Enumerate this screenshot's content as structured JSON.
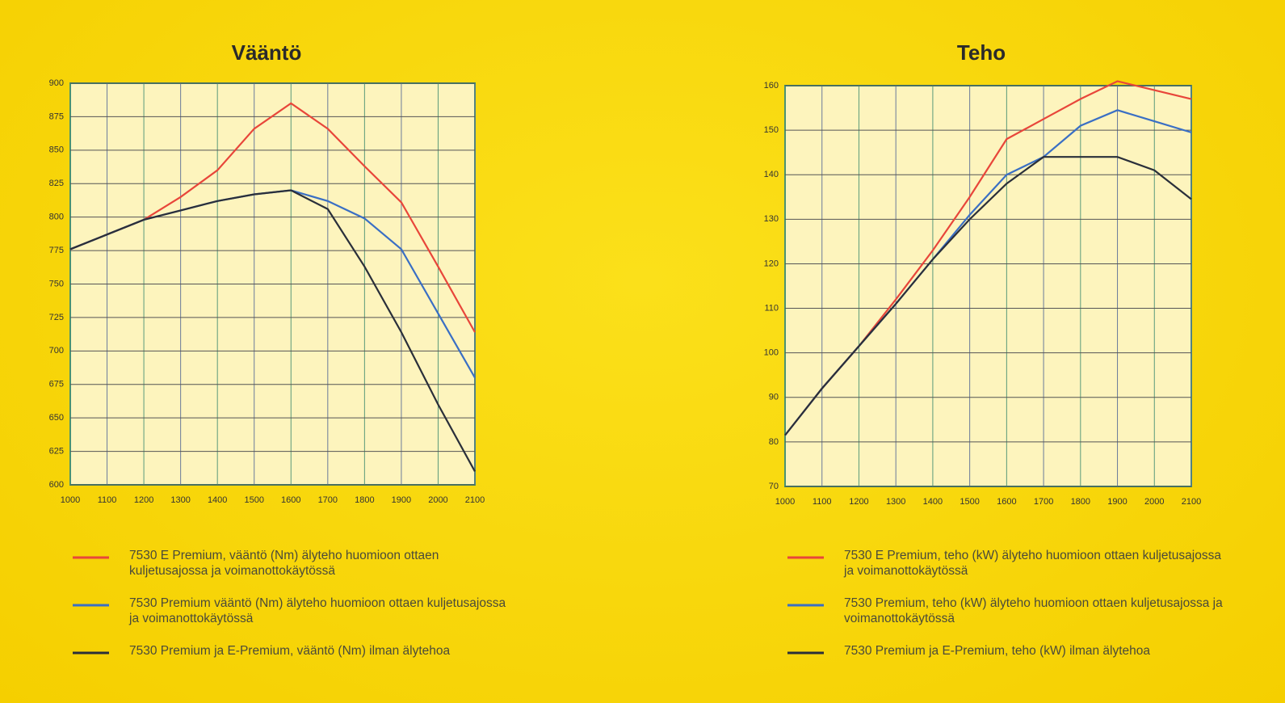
{
  "chart_data": [
    {
      "type": "line",
      "title": "Vääntö",
      "x": [
        1000,
        1100,
        1200,
        1300,
        1400,
        1500,
        1600,
        1700,
        1800,
        1900,
        2000,
        2100
      ],
      "xlim": [
        1000,
        2100
      ],
      "xticks": [
        1000,
        1100,
        1200,
        1300,
        1400,
        1500,
        1600,
        1700,
        1800,
        1900,
        2000,
        2100
      ],
      "ylim": [
        600,
        900
      ],
      "yticks": [
        600,
        625,
        650,
        675,
        700,
        725,
        750,
        775,
        800,
        825,
        850,
        875,
        900
      ],
      "grid": true,
      "series": [
        {
          "name": "7530 E Premium, vääntö (Nm) älyteho huomioon ottaen kuljetusajossa ja voimanottokäytössä",
          "color": "#e8463a",
          "values": [
            776,
            787,
            798,
            815,
            835,
            866,
            885,
            866,
            838,
            811,
            763,
            714
          ]
        },
        {
          "name": "7530 Premium vääntö (Nm) älyteho huomioon ottaen kuljetusajossa ja voimanottokäytössä",
          "color": "#3a6fc4",
          "values": [
            776,
            787,
            798,
            805,
            812,
            817,
            820,
            812,
            799,
            776,
            728,
            680
          ]
        },
        {
          "name": "7530 Premium ja E-Premium, vääntö (Nm) ilman älytehoa",
          "color": "#2a2f3a",
          "values": [
            776,
            787,
            798,
            805,
            812,
            817,
            820,
            806,
            763,
            714,
            660,
            610
          ]
        }
      ]
    },
    {
      "type": "line",
      "title": "Teho",
      "x": [
        1000,
        1100,
        1200,
        1300,
        1400,
        1500,
        1600,
        1700,
        1800,
        1900,
        2000,
        2100
      ],
      "xlim": [
        1000,
        2100
      ],
      "xticks": [
        1000,
        1100,
        1200,
        1300,
        1400,
        1500,
        1600,
        1700,
        1800,
        1900,
        2000,
        2100
      ],
      "ylim": [
        70,
        160
      ],
      "yticks": [
        70,
        80,
        90,
        100,
        110,
        120,
        130,
        140,
        150,
        160
      ],
      "grid": true,
      "series": [
        {
          "name": "7530 E Premium, teho (kW) älyteho huomioon ottaen kuljetusajossa ja voimanottokäytössä",
          "color": "#e8463a",
          "values": [
            81.5,
            92,
            101.5,
            112,
            123,
            135,
            148,
            152.5,
            157,
            161,
            159,
            157
          ]
        },
        {
          "name": "7530 Premium, teho (kW) älyteho huomioon ottaen kuljetusajossa ja voimanottokäytössä",
          "color": "#3a6fc4",
          "values": [
            81.5,
            92,
            101.5,
            111,
            121,
            131,
            140,
            144,
            151,
            154.5,
            152,
            149.5
          ]
        },
        {
          "name": "7530 Premium ja E-Premium, teho (kW) ilman älytehoa",
          "color": "#2a2f3a",
          "values": [
            81.5,
            92,
            101.5,
            111,
            121,
            130,
            138,
            144,
            144,
            144,
            141,
            134.5
          ]
        }
      ]
    }
  ]
}
